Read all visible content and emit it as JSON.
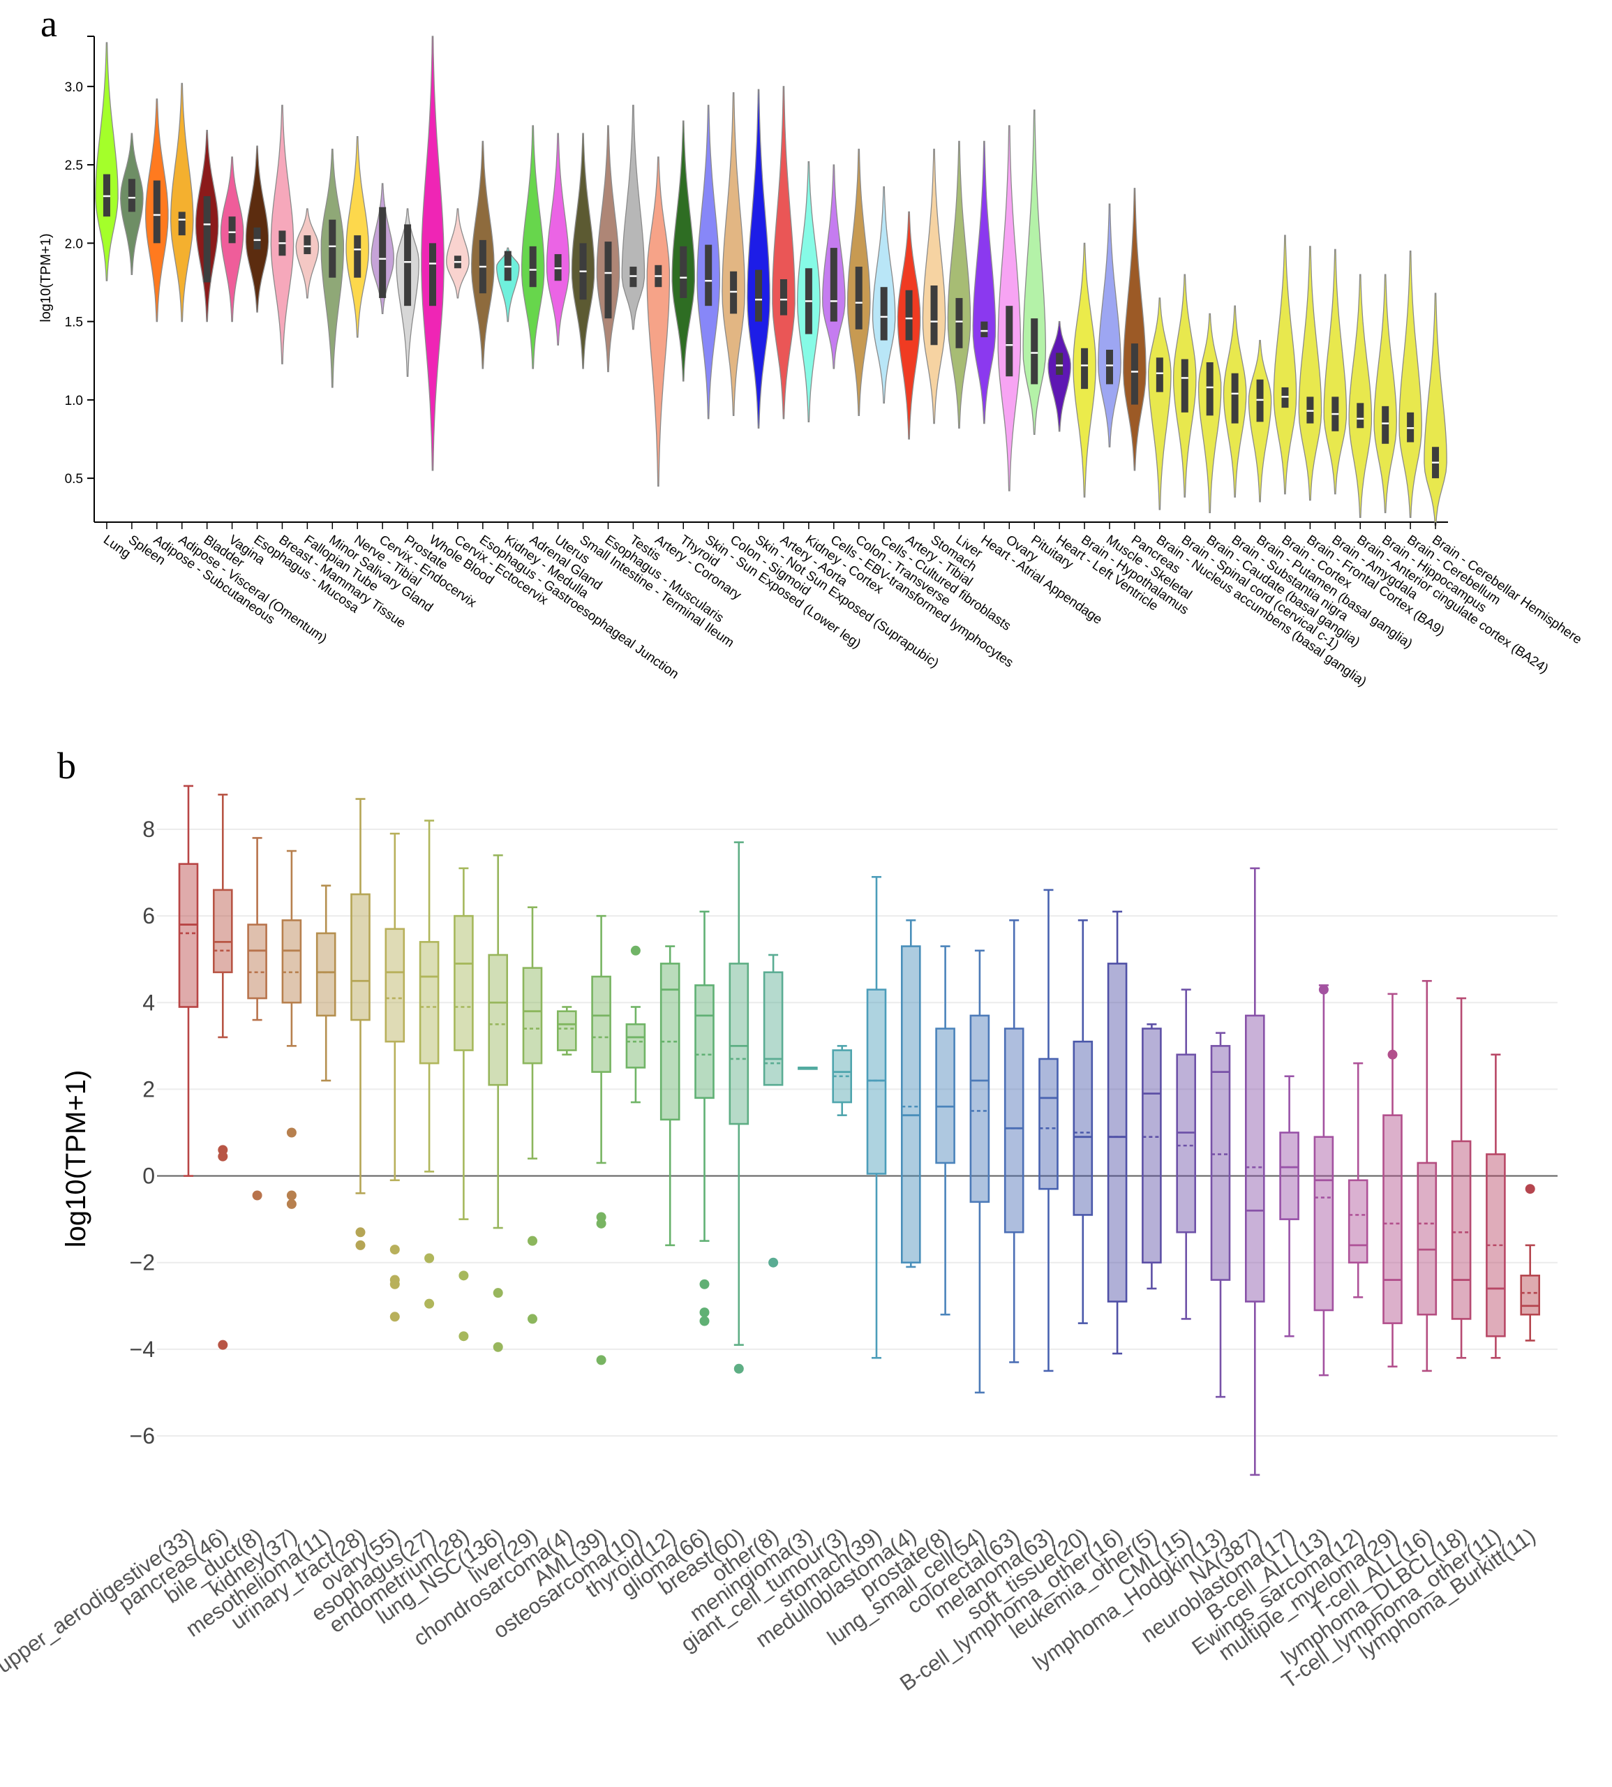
{
  "chart_data": [
    {
      "panel": "a",
      "type": "violin",
      "ylabel": "log10(TPM+1)",
      "yticks": [
        "0.5",
        "1.0",
        "1.5",
        "2.0",
        "2.5",
        "3.0"
      ],
      "ylim": [
        0.22,
        3.32
      ],
      "categories": [
        "Lung",
        "Spleen",
        "Adipose - Subcutaneous",
        "Adipose - Visceral (Omentum)",
        "Bladder",
        "Vagina",
        "Esophagus - Mucosa",
        "Breast - Mammary Tissue",
        "Fallopian Tube",
        "Minor Salivary Gland",
        "Nerve - Tibial",
        "Cervix - Endocervix",
        "Prostate",
        "Whole Blood",
        "Cervix - Ectocervix",
        "Esophagus - Gastroesophageal Junction",
        "Kidney - Medulla",
        "Adrenal Gland",
        "Uterus",
        "Small Intestine - Terminal Ileum",
        "Esophagus - Muscularis",
        "Testis",
        "Artery - Coronary",
        "Thyroid",
        "Skin - Sun Exposed (Lower leg)",
        "Colon - Sigmoid",
        "Skin - Not Sun Exposed (Suprapubic)",
        "Artery - Aorta",
        "Kidney - Cortex",
        "Cells - EBV-transformed lymphocytes",
        "Colon - Transverse",
        "Cells - Cultured fibroblasts",
        "Artery - Tibial",
        "Stomach",
        "Liver",
        "Heart - Atrial Appendage",
        "Ovary",
        "Pituitary",
        "Heart - Left Ventricle",
        "Brain - Hypothalamus",
        "Muscle - Skeletal",
        "Pancreas",
        "Brain - Nucleus accumbens (basal ganglia)",
        "Brain - Spinal cord (cervical c-1)",
        "Brain - Caudate (basal ganglia)",
        "Brain - Substantia nigra",
        "Brain - Putamen (basal ganglia)",
        "Brain - Cortex",
        "Brain - Frontal Cortex (BA9)",
        "Brain - Amygdala",
        "Brain - Anterior cingulate cortex (BA24)",
        "Brain - Hippocampus",
        "Brain - Cerebellum",
        "Brain - Cerebellar Hemisphere"
      ],
      "series": [
        {
          "name": "median",
          "values": [
            2.3,
            2.29,
            2.18,
            2.15,
            2.12,
            2.07,
            2.02,
            2.0,
            1.98,
            1.98,
            1.96,
            1.9,
            1.88,
            1.87,
            1.88,
            1.85,
            1.85,
            1.83,
            1.84,
            1.82,
            1.81,
            1.79,
            1.79,
            1.78,
            1.76,
            1.69,
            1.64,
            1.64,
            1.63,
            1.63,
            1.62,
            1.53,
            1.52,
            1.5,
            1.5,
            1.44,
            1.35,
            1.3,
            1.22,
            1.22,
            1.22,
            1.18,
            1.17,
            1.14,
            1.08,
            1.04,
            1.0,
            1.02,
            0.93,
            0.91,
            0.88,
            0.85,
            0.82,
            0.6
          ]
        },
        {
          "name": "q1",
          "values": [
            2.17,
            2.2,
            2.0,
            2.05,
            1.75,
            2.0,
            1.96,
            1.92,
            1.93,
            1.78,
            1.78,
            1.65,
            1.6,
            1.6,
            1.84,
            1.68,
            1.76,
            1.72,
            1.76,
            1.64,
            1.52,
            1.72,
            1.72,
            1.65,
            1.6,
            1.55,
            1.5,
            1.54,
            1.42,
            1.5,
            1.45,
            1.38,
            1.38,
            1.35,
            1.33,
            1.4,
            1.15,
            1.1,
            1.16,
            1.07,
            1.1,
            0.97,
            1.05,
            0.92,
            0.9,
            0.85,
            0.86,
            0.95,
            0.85,
            0.8,
            0.82,
            0.72,
            0.73,
            0.5
          ]
        },
        {
          "name": "q3",
          "values": [
            2.44,
            2.41,
            2.4,
            2.2,
            2.3,
            2.17,
            2.1,
            2.08,
            2.05,
            2.15,
            2.05,
            2.23,
            2.12,
            2.0,
            1.92,
            2.02,
            1.95,
            1.98,
            1.93,
            2.0,
            2.01,
            1.85,
            1.86,
            1.98,
            1.99,
            1.82,
            1.83,
            1.77,
            1.84,
            1.97,
            1.85,
            1.72,
            1.7,
            1.73,
            1.65,
            1.5,
            1.6,
            1.52,
            1.3,
            1.33,
            1.32,
            1.36,
            1.27,
            1.26,
            1.24,
            1.17,
            1.13,
            1.08,
            1.02,
            1.02,
            0.98,
            0.96,
            0.92,
            0.7
          ]
        },
        {
          "name": "min",
          "values": [
            1.76,
            1.8,
            1.5,
            1.5,
            1.5,
            1.5,
            1.56,
            1.23,
            1.65,
            1.08,
            1.4,
            1.55,
            1.15,
            0.55,
            1.65,
            1.2,
            1.5,
            1.2,
            1.35,
            1.2,
            1.18,
            1.45,
            0.45,
            1.12,
            0.88,
            0.9,
            0.82,
            0.88,
            0.86,
            1.2,
            0.9,
            0.98,
            0.75,
            0.85,
            0.82,
            0.85,
            0.42,
            0.78,
            0.8,
            0.38,
            0.7,
            0.55,
            0.3,
            0.38,
            0.28,
            0.38,
            0.35,
            0.4,
            0.36,
            0.4,
            0.25,
            0.28,
            0.25,
            0.2
          ]
        },
        {
          "name": "max",
          "values": [
            3.28,
            2.7,
            2.92,
            3.02,
            2.72,
            2.55,
            2.62,
            2.88,
            2.22,
            2.6,
            2.68,
            2.38,
            2.22,
            3.32,
            2.22,
            2.65,
            1.97,
            2.75,
            2.7,
            2.7,
            2.75,
            2.88,
            2.55,
            2.78,
            2.88,
            2.96,
            2.98,
            3.0,
            2.52,
            2.5,
            2.6,
            2.36,
            2.2,
            2.6,
            2.65,
            2.65,
            2.75,
            2.85,
            1.5,
            2.0,
            2.25,
            2.35,
            1.65,
            1.8,
            1.55,
            1.6,
            1.38,
            2.05,
            1.98,
            1.96,
            1.8,
            1.8,
            1.95,
            1.68
          ]
        },
        {
          "name": "color",
          "values": [
            "#a4ff2a",
            "#6e8e65",
            "#ff7a1f",
            "#f4b02f",
            "#8b1a1a",
            "#ef5d9a",
            "#5c2c0f",
            "#f6a8bb",
            "#f4c8c4",
            "#8fa877",
            "#fdd84c",
            "#c6a3d8",
            "#d7d7d7",
            "#ef25b5",
            "#f9d3cf",
            "#8e6b3d",
            "#6ff0dc",
            "#67d64c",
            "#eb64e5",
            "#5c5a32",
            "#ae8676",
            "#b7b7b7",
            "#f6a388",
            "#2e6d23",
            "#8787f8",
            "#e2b683",
            "#1d1de7",
            "#ea5656",
            "#86fbe6",
            "#c57cf0",
            "#c79a52",
            "#b9e6f7",
            "#f03b22",
            "#f6d3a2",
            "#a7bc74",
            "#8b39ef",
            "#f7a4f3",
            "#b4f2a8",
            "#5e17b3",
            "#ebeb4b",
            "#9da6f2",
            "#9c5a26",
            "#e8e84e",
            "#e8e84e",
            "#e8e84e",
            "#e8e84e",
            "#e8e84e",
            "#e8e84e",
            "#e8e84e",
            "#e8e84e",
            "#e8e84e",
            "#e8e84e",
            "#e8e84e",
            "#e8e84e"
          ]
        }
      ]
    },
    {
      "panel": "b",
      "type": "box",
      "ylabel": "log10(TPM+1)",
      "yticks": [
        "8",
        "6",
        "4",
        "2",
        "0",
        "−2",
        "−4",
        "−6"
      ],
      "ylim": [
        -7.2,
        9.4
      ],
      "categories": [
        "upper_aerodigestive(33)",
        "pancreas(46)",
        "bile_duct(8)",
        "kidney(37)",
        "mesothelioma(11)",
        "urinary_tract(28)",
        "ovary(55)",
        "esophagus(27)",
        "endometrium(28)",
        "lung_NSC(136)",
        "liver(29)",
        "chondrosarcoma(4)",
        "AML(39)",
        "osteosarcoma(10)",
        "thyroid(12)",
        "glioma(66)",
        "breast(60)",
        "other(8)",
        "meningioma(3)",
        "giant_cell_tumour(3)",
        "stomach(39)",
        "medulloblastoma(4)",
        "prostate(8)",
        "lung_small_cell(54)",
        "colorectal(63)",
        "melanoma(63)",
        "soft_tissue(20)",
        "B-cell_lymphoma_other(16)",
        "leukemia_other(5)",
        "CML(15)",
        "lymphoma_Hodgkin(13)",
        "NA(387)",
        "neuroblastoma(17)",
        "B-cell_ALL(13)",
        "Ewings_sarcoma(12)",
        "multiple_myeloma(29)",
        "T-cell_ALL(16)",
        "lymphoma_DLBCL(18)",
        "T-cell_lymphoma_other(11)",
        "lymphoma_Burkitt(11)"
      ],
      "series": [
        {
          "name": "min",
          "values": [
            0,
            3.2,
            3.6,
            3.0,
            2.2,
            -0.4,
            -0.1,
            0.1,
            -1.0,
            -1.2,
            0.4,
            2.8,
            0.3,
            1.7,
            -1.6,
            -1.5,
            -3.9,
            2.1,
            2.5,
            1.4,
            -4.2,
            -2.1,
            -3.2,
            -5.0,
            -4.3,
            -4.5,
            -3.4,
            -4.1,
            -2.6,
            -3.3,
            -5.1,
            -6.9,
            -3.7,
            -4.6,
            -2.8,
            -4.4,
            -4.5,
            -4.2,
            -4.2,
            -3.8
          ]
        },
        {
          "name": "q1",
          "values": [
            3.9,
            4.7,
            4.1,
            4.0,
            3.7,
            3.6,
            3.1,
            2.6,
            2.9,
            2.1,
            2.6,
            2.9,
            2.4,
            2.5,
            1.3,
            1.8,
            1.2,
            2.1,
            2.5,
            1.7,
            0.05,
            -2.0,
            0.3,
            -0.6,
            -1.3,
            -0.3,
            -0.9,
            -2.9,
            -2.0,
            -1.3,
            -2.4,
            -2.9,
            -1.0,
            -3.1,
            -2.0,
            -3.4,
            -3.2,
            -3.3,
            -3.7,
            -3.2
          ]
        },
        {
          "name": "median",
          "values": [
            5.8,
            5.4,
            5.2,
            5.2,
            4.7,
            4.5,
            4.7,
            4.6,
            4.9,
            4.0,
            3.8,
            3.5,
            3.7,
            3.2,
            4.3,
            3.7,
            3.0,
            2.7,
            2.5,
            2.4,
            2.2,
            1.4,
            1.6,
            2.2,
            1.1,
            1.8,
            0.9,
            0.9,
            1.9,
            1.0,
            2.4,
            -0.8,
            0.2,
            -0.1,
            -1.6,
            -2.4,
            -1.7,
            -2.4,
            -2.6,
            -3.0
          ]
        },
        {
          "name": "q3",
          "values": [
            7.2,
            6.6,
            5.8,
            5.9,
            5.6,
            6.5,
            5.7,
            5.4,
            6.0,
            5.1,
            4.8,
            3.8,
            4.6,
            3.5,
            4.9,
            4.4,
            4.9,
            4.7,
            2.5,
            2.9,
            4.3,
            5.3,
            3.4,
            3.7,
            3.4,
            2.7,
            3.1,
            4.9,
            3.4,
            2.8,
            3.0,
            3.7,
            1.0,
            0.9,
            -0.1,
            1.4,
            0.3,
            0.8,
            0.5,
            -2.3
          ]
        },
        {
          "name": "max",
          "values": [
            9.0,
            8.8,
            7.8,
            7.5,
            6.7,
            8.7,
            7.9,
            8.2,
            7.1,
            7.4,
            6.2,
            3.9,
            6.0,
            3.9,
            5.3,
            6.1,
            7.7,
            5.1,
            2.5,
            3.0,
            6.9,
            5.9,
            5.3,
            5.2,
            5.9,
            6.6,
            5.9,
            6.1,
            3.5,
            4.3,
            3.3,
            7.1,
            2.3,
            4.4,
            2.6,
            4.2,
            4.5,
            4.1,
            2.8,
            -1.6
          ]
        },
        {
          "name": "mean",
          "values": [
            5.6,
            5.2,
            4.7,
            4.7,
            4.7,
            4.5,
            4.1,
            3.9,
            3.9,
            3.5,
            3.4,
            3.4,
            3.2,
            3.1,
            3.1,
            2.8,
            2.7,
            2.6,
            2.5,
            2.3,
            2.2,
            1.6,
            1.6,
            1.5,
            1.1,
            1.1,
            1.0,
            0.9,
            0.9,
            0.7,
            0.5,
            0.2,
            0.2,
            -0.5,
            -0.9,
            -1.1,
            -1.1,
            -1.3,
            -1.6,
            -2.7
          ]
        },
        {
          "name": "color",
          "values": [
            "#b84545",
            "#b85545",
            "#b8734c",
            "#b7804e",
            "#b58f4f",
            "#b5a555",
            "#b8b05b",
            "#b0b65b",
            "#a6b85c",
            "#98b65d",
            "#8cb65d",
            "#80b65f",
            "#78b462",
            "#70b466",
            "#67b26b",
            "#60b074",
            "#5eae84",
            "#5aac93",
            "#52aaa0",
            "#4fa5ad",
            "#4c9dba",
            "#4a8fba",
            "#4b84bb",
            "#4c7ab8",
            "#4b6eb5",
            "#4862b0",
            "#4a58aa",
            "#4f50a6",
            "#5d50a6",
            "#6e52a8",
            "#7852a8",
            "#8852a8",
            "#9852a8",
            "#a352a0",
            "#ae5298",
            "#b24f8c",
            "#b44d80",
            "#b64a72",
            "#b84866",
            "#b5454e"
          ]
        }
      ],
      "outliers": [
        {
          "category": "pancreas(46)",
          "values": [
            0.6,
            0.45,
            -3.9
          ]
        },
        {
          "category": "bile_duct(8)",
          "values": [
            -0.45
          ]
        },
        {
          "category": "kidney(37)",
          "values": [
            1.0,
            -0.45,
            -0.65
          ]
        },
        {
          "category": "urinary_tract(28)",
          "values": [
            -1.3,
            -1.6
          ]
        },
        {
          "category": "ovary(55)",
          "values": [
            -1.7,
            -2.4,
            -2.5,
            -3.25
          ]
        },
        {
          "category": "esophagus(27)",
          "values": [
            -1.9,
            -2.95
          ]
        },
        {
          "category": "endometrium(28)",
          "values": [
            -2.3,
            -3.7
          ]
        },
        {
          "category": "lung_NSC(136)",
          "values": [
            -2.7,
            -3.95
          ]
        },
        {
          "category": "liver(29)",
          "values": [
            -1.5,
            -3.3
          ]
        },
        {
          "category": "AML(39)",
          "values": [
            -0.95,
            -1.1,
            -4.25
          ]
        },
        {
          "category": "osteosarcoma(10)",
          "values": [
            5.2
          ]
        },
        {
          "category": "glioma(66)",
          "values": [
            -2.5,
            -3.15,
            -3.35
          ]
        },
        {
          "category": "breast(60)",
          "values": [
            -4.45
          ]
        },
        {
          "category": "other(8)",
          "values": [
            -2.0
          ]
        },
        {
          "category": "B-cell_ALL(13)",
          "values": [
            4.3
          ]
        },
        {
          "category": "multiple_myeloma(29)",
          "values": [
            2.8
          ]
        },
        {
          "category": "lymphoma_Burkitt(11)",
          "values": [
            -0.3
          ]
        }
      ]
    }
  ],
  "labels": {
    "panel_a": "a",
    "panel_b": "b"
  }
}
